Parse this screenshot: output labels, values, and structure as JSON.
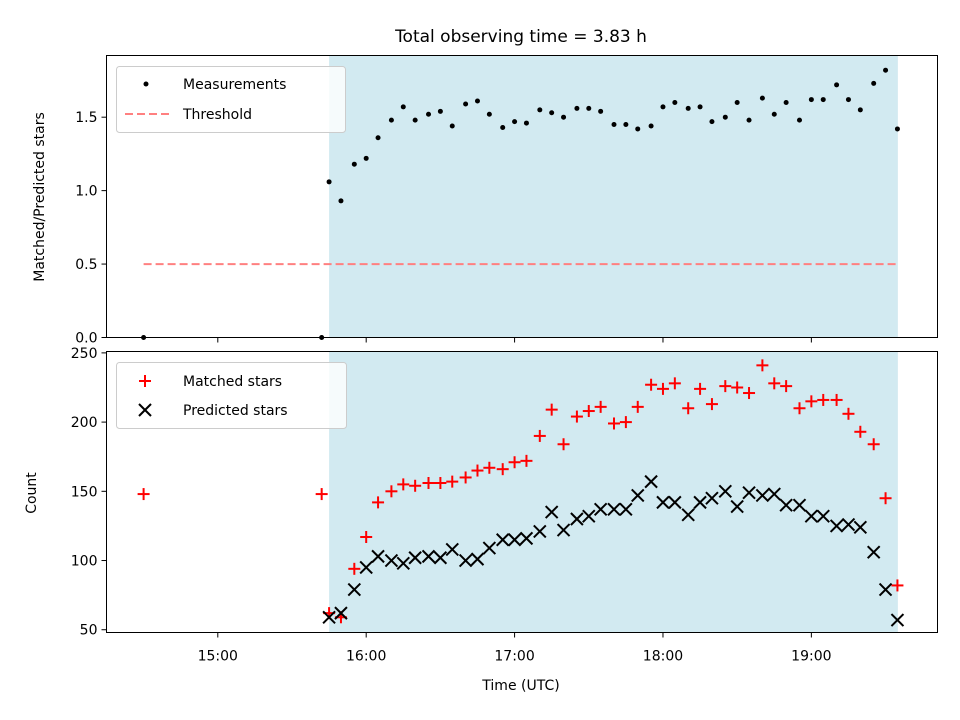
{
  "chart_data": {
    "title": "Total observing time = 3.83 h",
    "xlabel": "Time (UTC)",
    "shade_color": "#add8e6",
    "xticks": [
      {
        "hour": 15,
        "label": "15:00"
      },
      {
        "hour": 16,
        "label": "16:00"
      },
      {
        "hour": 17,
        "label": "17:00"
      },
      {
        "hour": 18,
        "label": "18:00"
      },
      {
        "hour": 19,
        "label": "19:00"
      }
    ],
    "panels": [
      {
        "type": "scatter",
        "ylabel": "Matched/Predicted stars",
        "ylim": [
          0,
          1.92
        ],
        "yticks": [
          0.0,
          0.5,
          1.0,
          1.5
        ],
        "ytick_labels": [
          "0.0",
          "0.5",
          "1.0",
          "1.5"
        ],
        "observing_window": [
          15.75,
          19.583
        ],
        "legend": [
          "Measurements",
          "Threshold"
        ],
        "threshold": {
          "name": "Threshold",
          "value": 0.5,
          "x": [
            14.5,
            19.583
          ],
          "color": "#ff8080"
        },
        "series": [
          {
            "name": "Measurements",
            "marker": "dot",
            "color": "#000000",
            "points": [
              [
                14.5,
                0.0
              ],
              [
                15.7,
                0.0
              ],
              [
                15.75,
                1.06
              ],
              [
                15.83,
                0.93
              ],
              [
                15.92,
                1.18
              ],
              [
                16.0,
                1.22
              ],
              [
                16.08,
                1.36
              ],
              [
                16.17,
                1.48
              ],
              [
                16.25,
                1.57
              ],
              [
                16.33,
                1.48
              ],
              [
                16.42,
                1.52
              ],
              [
                16.5,
                1.54
              ],
              [
                16.58,
                1.44
              ],
              [
                16.67,
                1.59
              ],
              [
                16.75,
                1.61
              ],
              [
                16.83,
                1.52
              ],
              [
                16.92,
                1.43
              ],
              [
                17.0,
                1.47
              ],
              [
                17.08,
                1.46
              ],
              [
                17.17,
                1.55
              ],
              [
                17.25,
                1.53
              ],
              [
                17.33,
                1.5
              ],
              [
                17.42,
                1.56
              ],
              [
                17.5,
                1.56
              ],
              [
                17.58,
                1.54
              ],
              [
                17.67,
                1.45
              ],
              [
                17.75,
                1.45
              ],
              [
                17.83,
                1.42
              ],
              [
                17.92,
                1.44
              ],
              [
                18.0,
                1.57
              ],
              [
                18.08,
                1.6
              ],
              [
                18.17,
                1.56
              ],
              [
                18.25,
                1.57
              ],
              [
                18.33,
                1.47
              ],
              [
                18.42,
                1.5
              ],
              [
                18.5,
                1.6
              ],
              [
                18.58,
                1.48
              ],
              [
                18.67,
                1.63
              ],
              [
                18.75,
                1.52
              ],
              [
                18.83,
                1.6
              ],
              [
                18.92,
                1.48
              ],
              [
                19.0,
                1.62
              ],
              [
                19.08,
                1.62
              ],
              [
                19.17,
                1.72
              ],
              [
                19.25,
                1.62
              ],
              [
                19.33,
                1.55
              ],
              [
                19.42,
                1.73
              ],
              [
                19.5,
                1.82
              ],
              [
                19.58,
                1.42
              ]
            ]
          }
        ]
      },
      {
        "type": "scatter",
        "ylabel": "Count",
        "ylim": [
          48,
          251
        ],
        "yticks": [
          50,
          100,
          150,
          200,
          250
        ],
        "ytick_labels": [
          "50",
          "100",
          "150",
          "200",
          "250"
        ],
        "observing_window": [
          15.75,
          19.583
        ],
        "legend": [
          "Matched stars",
          "Predicted stars"
        ],
        "series": [
          {
            "name": "Matched stars",
            "marker": "plus",
            "color": "#ff0000",
            "points": [
              [
                14.5,
                148
              ],
              [
                15.7,
                148
              ],
              [
                15.75,
                62
              ],
              [
                15.83,
                59
              ],
              [
                15.92,
                94
              ],
              [
                16.0,
                117
              ],
              [
                16.08,
                142
              ],
              [
                16.17,
                150
              ],
              [
                16.25,
                155
              ],
              [
                16.33,
                154
              ],
              [
                16.42,
                156
              ],
              [
                16.5,
                156
              ],
              [
                16.58,
                157
              ],
              [
                16.67,
                160
              ],
              [
                16.75,
                165
              ],
              [
                16.83,
                167
              ],
              [
                16.92,
                166
              ],
              [
                17.0,
                171
              ],
              [
                17.08,
                172
              ],
              [
                17.17,
                190
              ],
              [
                17.25,
                209
              ],
              [
                17.33,
                184
              ],
              [
                17.42,
                204
              ],
              [
                17.5,
                208
              ],
              [
                17.58,
                211
              ],
              [
                17.67,
                199
              ],
              [
                17.75,
                200
              ],
              [
                17.83,
                211
              ],
              [
                17.92,
                227
              ],
              [
                18.0,
                224
              ],
              [
                18.08,
                228
              ],
              [
                18.17,
                210
              ],
              [
                18.25,
                224
              ],
              [
                18.33,
                213
              ],
              [
                18.42,
                226
              ],
              [
                18.5,
                225
              ],
              [
                18.58,
                221
              ],
              [
                18.67,
                241
              ],
              [
                18.75,
                228
              ],
              [
                18.83,
                226
              ],
              [
                18.92,
                210
              ],
              [
                19.0,
                215
              ],
              [
                19.08,
                216
              ],
              [
                19.17,
                216
              ],
              [
                19.25,
                206
              ],
              [
                19.33,
                193
              ],
              [
                19.42,
                184
              ],
              [
                19.5,
                145
              ],
              [
                19.58,
                82
              ]
            ]
          },
          {
            "name": "Predicted stars",
            "marker": "x",
            "color": "#000000",
            "points": [
              [
                15.75,
                59
              ],
              [
                15.83,
                62
              ],
              [
                15.92,
                79
              ],
              [
                16.0,
                95
              ],
              [
                16.08,
                103
              ],
              [
                16.17,
                100
              ],
              [
                16.25,
                98
              ],
              [
                16.33,
                102
              ],
              [
                16.42,
                103
              ],
              [
                16.5,
                102
              ],
              [
                16.58,
                108
              ],
              [
                16.67,
                100
              ],
              [
                16.75,
                101
              ],
              [
                16.83,
                109
              ],
              [
                16.92,
                115
              ],
              [
                17.0,
                115
              ],
              [
                17.08,
                116
              ],
              [
                17.17,
                121
              ],
              [
                17.25,
                135
              ],
              [
                17.33,
                122
              ],
              [
                17.42,
                130
              ],
              [
                17.5,
                132
              ],
              [
                17.58,
                137
              ],
              [
                17.67,
                137
              ],
              [
                17.75,
                137
              ],
              [
                17.83,
                147
              ],
              [
                17.92,
                157
              ],
              [
                18.0,
                142
              ],
              [
                18.08,
                142
              ],
              [
                18.17,
                133
              ],
              [
                18.25,
                142
              ],
              [
                18.33,
                145
              ],
              [
                18.42,
                150
              ],
              [
                18.5,
                139
              ],
              [
                18.58,
                149
              ],
              [
                18.67,
                147
              ],
              [
                18.75,
                148
              ],
              [
                18.83,
                140
              ],
              [
                18.92,
                140
              ],
              [
                19.0,
                132
              ],
              [
                19.08,
                132
              ],
              [
                19.17,
                125
              ],
              [
                19.25,
                126
              ],
              [
                19.33,
                124
              ],
              [
                19.42,
                106
              ],
              [
                19.5,
                79
              ],
              [
                19.58,
                57
              ]
            ]
          }
        ]
      }
    ]
  }
}
